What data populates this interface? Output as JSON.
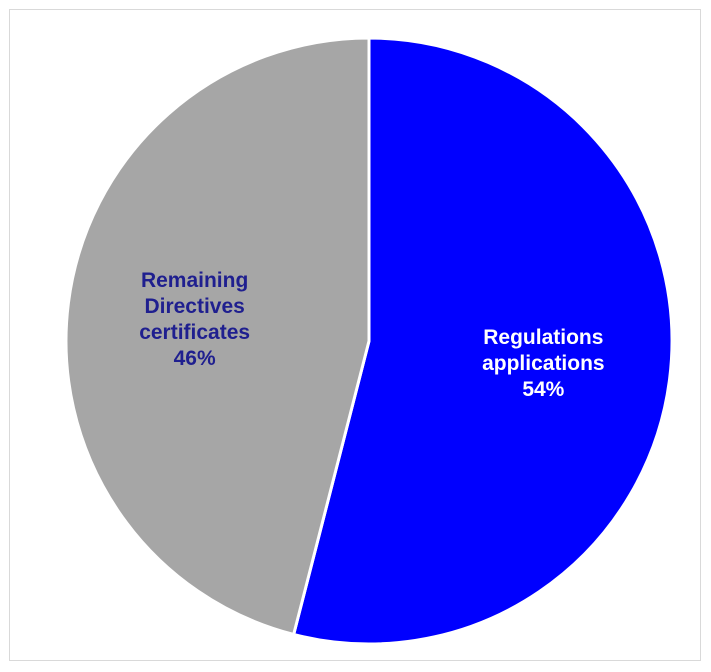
{
  "chart_data": {
    "type": "pie",
    "title": "",
    "slices": [
      {
        "name": "Regulations applications",
        "label_lines": [
          "Regulations",
          "applications",
          "54%"
        ],
        "value": 54,
        "color": "#0000ff",
        "label_color": "#ffffff"
      },
      {
        "name": "Remaining Directives certificates",
        "label_lines": [
          "Remaining",
          "Directives",
          "certificates",
          "46%"
        ],
        "value": 46,
        "color": "#a6a6a6",
        "label_color": "#1f1f8f"
      }
    ],
    "start_angle": "top, clockwise",
    "legend": "none",
    "data_labels": "inside slices"
  }
}
